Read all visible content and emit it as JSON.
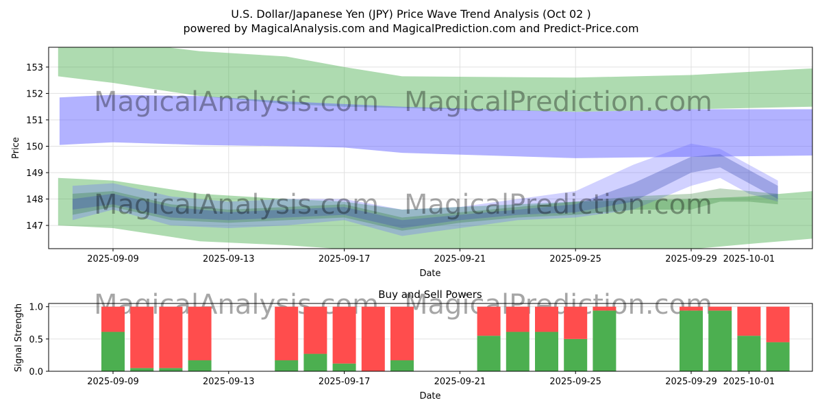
{
  "chart_data": [
    {
      "type": "area",
      "title": "U.S. Dollar/Japanese Yen (JPY) Price Wave Trend Analysis (Oct 02 )",
      "subtitle": "powered by MagicalAnalysis.com and MagicalPrediction.com and Predict-Price.com",
      "xlabel": "Date",
      "ylabel": "Price",
      "ylim": [
        146.12,
        153.75
      ],
      "xlim_days_from_2025_09_09": [
        -2.2,
        24.2
      ],
      "xticks": [
        {
          "day": 0,
          "label": "2025-09-09"
        },
        {
          "day": 4,
          "label": "2025-09-13"
        },
        {
          "day": 8,
          "label": "2025-09-17"
        },
        {
          "day": 12,
          "label": "2025-09-21"
        },
        {
          "day": 16,
          "label": "2025-09-25"
        },
        {
          "day": 20,
          "label": "2025-09-29"
        },
        {
          "day": 22,
          "label": "2025-10-01"
        }
      ],
      "yticks": [
        147,
        148,
        149,
        150,
        151,
        152,
        153
      ],
      "grid": true,
      "watermark": [
        "MagicalAnalysis.com",
        "MagicalPrediction.com"
      ],
      "bands": [
        {
          "name": "upper-green-band",
          "color": "#4caf50",
          "opacity": 0.45,
          "x": [
            -1.9,
            0,
            3,
            6,
            8,
            10,
            16,
            20,
            24.2
          ],
          "upper": [
            154,
            154,
            153.6,
            153.4,
            153.0,
            152.65,
            152.6,
            152.7,
            152.95
          ],
          "lower": [
            152.65,
            152.4,
            151.9,
            151.6,
            151.5,
            151.45,
            151.3,
            151.4,
            151.5
          ]
        },
        {
          "name": "upper-blue-band",
          "color": "#6666ff",
          "opacity": 0.5,
          "x": [
            -1.85,
            0,
            3,
            6,
            8,
            10,
            16,
            20,
            24.2
          ],
          "upper": [
            151.85,
            151.95,
            151.9,
            151.7,
            151.6,
            151.5,
            151.3,
            151.4,
            151.4
          ],
          "lower": [
            150.05,
            150.15,
            150.05,
            150.0,
            149.95,
            149.75,
            149.55,
            149.6,
            149.65
          ]
        },
        {
          "name": "lower-green-band",
          "color": "#4caf50",
          "opacity": 0.45,
          "x": [
            -1.9,
            0,
            3,
            6,
            8,
            10,
            12,
            16,
            20,
            22,
            24.2
          ],
          "upper": [
            148.8,
            148.7,
            148.2,
            148.0,
            147.9,
            147.6,
            147.7,
            147.9,
            148.0,
            148.1,
            148.3
          ],
          "lower": [
            147.0,
            146.9,
            146.4,
            146.25,
            146.1,
            146.0,
            146.1,
            146.0,
            146.1,
            146.3,
            146.5
          ]
        },
        {
          "name": "wave-band-1",
          "color": "#6666ff",
          "opacity": 0.3,
          "x": [
            -1.4,
            0,
            2,
            4,
            6,
            8,
            10,
            12,
            14,
            16,
            18,
            20,
            21,
            22,
            23
          ],
          "upper": [
            148.5,
            148.6,
            148.1,
            147.9,
            148.0,
            148.0,
            147.6,
            147.7,
            148.0,
            148.3,
            149.3,
            150.1,
            149.9,
            149.3,
            148.7
          ],
          "lower": [
            147.2,
            147.6,
            147.0,
            146.9,
            147.0,
            147.2,
            146.6,
            146.9,
            147.2,
            147.3,
            147.6,
            148.5,
            148.8,
            148.2,
            147.9
          ]
        },
        {
          "name": "wave-band-2",
          "color": "#2e7d32",
          "opacity": 0.3,
          "x": [
            -1.4,
            0,
            2,
            4,
            6,
            8,
            10,
            12,
            14,
            16,
            18,
            20,
            21,
            22,
            23
          ],
          "upper": [
            148.2,
            148.3,
            147.8,
            147.6,
            147.7,
            147.8,
            147.3,
            147.5,
            147.7,
            147.9,
            148.1,
            148.2,
            148.4,
            148.3,
            148.2
          ],
          "lower": [
            147.4,
            147.7,
            147.2,
            147.1,
            147.2,
            147.3,
            146.8,
            147.1,
            147.3,
            147.4,
            147.6,
            147.6,
            147.9,
            147.9,
            147.8
          ]
        },
        {
          "name": "wave-band-3",
          "color": "#3f51b5",
          "opacity": 0.35,
          "x": [
            -1.4,
            0,
            2,
            4,
            6,
            8,
            10,
            12,
            14,
            16,
            18,
            20,
            21,
            22,
            23
          ],
          "upper": [
            148.0,
            148.2,
            147.7,
            147.5,
            147.6,
            147.7,
            147.2,
            147.4,
            147.6,
            147.8,
            148.6,
            149.6,
            149.7,
            149.1,
            148.5
          ],
          "lower": [
            147.6,
            147.8,
            147.3,
            147.2,
            147.3,
            147.4,
            146.9,
            147.2,
            147.4,
            147.5,
            147.9,
            149.0,
            149.2,
            148.6,
            148.0
          ]
        }
      ]
    },
    {
      "type": "bar",
      "title": "Buy and Sell Powers",
      "xlabel": "Date",
      "ylabel": "Signal Strength",
      "ylim": [
        0,
        1.05
      ],
      "yticks": [
        0.0,
        0.5,
        1.0
      ],
      "ytick_labels": [
        "0.0",
        "0.5",
        "1.0"
      ],
      "days": [
        0,
        1,
        2,
        3,
        6,
        7,
        8,
        9,
        10,
        13,
        14,
        15,
        16,
        17,
        20,
        21,
        22,
        23
      ],
      "series": [
        {
          "name": "Buy",
          "color": "#4caf50",
          "values": [
            0.61,
            0.05,
            0.05,
            0.17,
            0.17,
            0.27,
            0.12,
            0.0,
            0.17,
            0.55,
            0.61,
            0.61,
            0.5,
            0.94,
            0.94,
            0.94,
            0.55,
            0.45
          ]
        },
        {
          "name": "Sell",
          "color": "#ff4d4d",
          "values": [
            0.39,
            0.95,
            0.95,
            0.83,
            0.83,
            0.73,
            0.88,
            1.0,
            0.83,
            0.45,
            0.39,
            0.39,
            0.5,
            0.06,
            0.06,
            0.06,
            0.45,
            0.55
          ]
        }
      ]
    }
  ]
}
